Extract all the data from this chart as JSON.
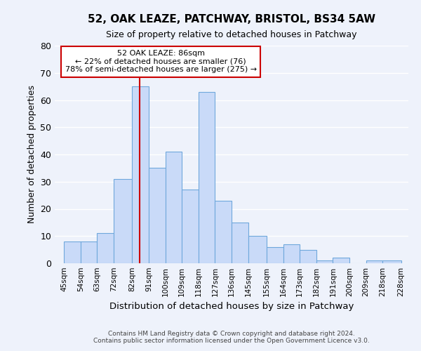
{
  "title": "52, OAK LEAZE, PATCHWAY, BRISTOL, BS34 5AW",
  "subtitle": "Size of property relative to detached houses in Patchway",
  "xlabel": "Distribution of detached houses by size in Patchway",
  "ylabel": "Number of detached properties",
  "bar_color": "#c9daf8",
  "bar_edge_color": "#6fa8dc",
  "bar_left_edges": [
    45,
    54,
    63,
    72,
    82,
    91,
    100,
    109,
    118,
    127,
    136,
    145,
    155,
    164,
    173,
    182,
    191,
    200,
    209,
    218
  ],
  "bar_widths": [
    9,
    9,
    9,
    10,
    9,
    9,
    9,
    9,
    9,
    9,
    9,
    10,
    9,
    9,
    9,
    9,
    9,
    9,
    9,
    10
  ],
  "bar_heights": [
    8,
    8,
    11,
    31,
    65,
    35,
    41,
    27,
    63,
    23,
    15,
    10,
    6,
    7,
    5,
    1,
    2,
    0,
    1,
    1
  ],
  "tick_labels": [
    "45sqm",
    "54sqm",
    "63sqm",
    "72sqm",
    "82sqm",
    "91sqm",
    "100sqm",
    "109sqm",
    "118sqm",
    "127sqm",
    "136sqm",
    "145sqm",
    "155sqm",
    "164sqm",
    "173sqm",
    "182sqm",
    "191sqm",
    "200sqm",
    "209sqm",
    "218sqm",
    "228sqm"
  ],
  "tick_positions": [
    45,
    54,
    63,
    72,
    82,
    91,
    100,
    109,
    118,
    127,
    136,
    145,
    155,
    164,
    173,
    182,
    191,
    200,
    209,
    218,
    228
  ],
  "ylim": [
    0,
    80
  ],
  "xlim": [
    40,
    232
  ],
  "property_line_x": 86,
  "property_line_color": "#cc0000",
  "annotation_title": "52 OAK LEAZE: 86sqm",
  "annotation_line1": "← 22% of detached houses are smaller (76)",
  "annotation_line2": "78% of semi-detached houses are larger (275) →",
  "annotation_box_color": "#ffffff",
  "annotation_box_edge_color": "#cc0000",
  "footer_line1": "Contains HM Land Registry data © Crown copyright and database right 2024.",
  "footer_line2": "Contains public sector information licensed under the Open Government Licence v3.0.",
  "background_color": "#eef2fb",
  "grid_color": "#ffffff",
  "yticks": [
    0,
    10,
    20,
    30,
    40,
    50,
    60,
    70,
    80
  ]
}
